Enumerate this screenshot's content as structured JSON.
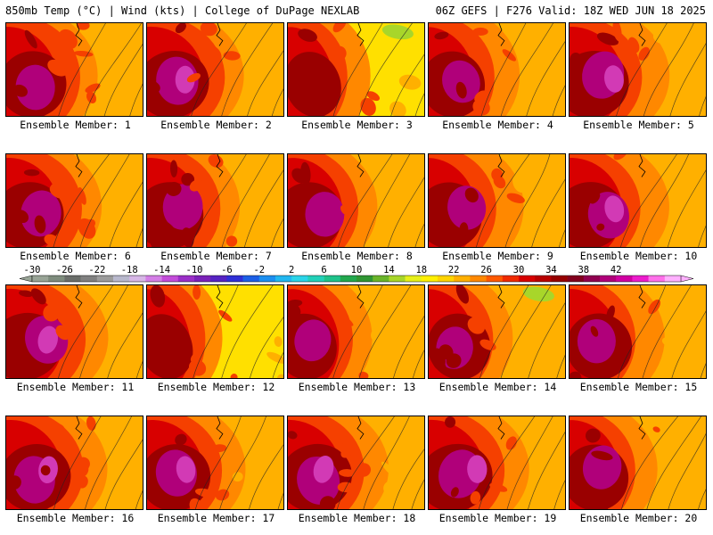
{
  "header": {
    "left_title": "850mb Temp (°C) | Wind (kts) | College of DuPage NEXLAB",
    "right_title": "06Z GEFS | F276 Valid: 18Z WED JUN 18 2025"
  },
  "members": [
    {
      "label": "Ensemble Member: 1",
      "heat": 0.74
    },
    {
      "label": "Ensemble Member: 2",
      "heat": 0.85
    },
    {
      "label": "Ensemble Member: 3",
      "heat": 0.5
    },
    {
      "label": "Ensemble Member: 4",
      "heat": 0.66
    },
    {
      "label": "Ensemble Member: 5",
      "heat": 0.83
    },
    {
      "label": "Ensemble Member: 6",
      "heat": 0.78
    },
    {
      "label": "Ensemble Member: 7",
      "heat": 0.76
    },
    {
      "label": "Ensemble Member: 8",
      "heat": 0.73
    },
    {
      "label": "Ensemble Member: 9",
      "heat": 0.7
    },
    {
      "label": "Ensemble Member: 10",
      "heat": 0.8
    },
    {
      "label": "Ensemble Member: 11",
      "heat": 0.86
    },
    {
      "label": "Ensemble Member: 12",
      "heat": 0.45
    },
    {
      "label": "Ensemble Member: 13",
      "heat": 0.62
    },
    {
      "label": "Ensemble Member: 14",
      "heat": 0.64
    },
    {
      "label": "Ensemble Member: 15",
      "heat": 0.7
    },
    {
      "label": "Ensemble Member: 16",
      "heat": 0.82
    },
    {
      "label": "Ensemble Member: 17",
      "heat": 0.8
    },
    {
      "label": "Ensemble Member: 18",
      "heat": 0.86
    },
    {
      "label": "Ensemble Member: 19",
      "heat": 0.88
    },
    {
      "label": "Ensemble Member: 20",
      "heat": 0.7
    }
  ],
  "legend": {
    "tick_labels": [
      "-30",
      "-26",
      "-22",
      "-18",
      "-14",
      "-10",
      "-6",
      "-2",
      "2",
      "6",
      "10",
      "14",
      "18",
      "22",
      "26",
      "30",
      "34",
      "38",
      "42"
    ],
    "colors": [
      "#98a496",
      "#7e8c7d",
      "#6a6e6a",
      "#808080",
      "#9c9c9c",
      "#b8b8cc",
      "#d6b6e6",
      "#d37ee6",
      "#c24cd9",
      "#9a2fc7",
      "#7a22b8",
      "#5623c2",
      "#2f2fd6",
      "#1c5fe6",
      "#1c8ff0",
      "#22b7f0",
      "#2ad4e8",
      "#22d0b8",
      "#1fc28a",
      "#22a84e",
      "#2f9633",
      "#6ab52a",
      "#a8d62a",
      "#e6f01a",
      "#fff000",
      "#ffd400",
      "#ffb000",
      "#ff8800",
      "#ff5a00",
      "#f02a00",
      "#d80000",
      "#b80000",
      "#960000",
      "#82001e",
      "#900050",
      "#b0007a",
      "#d000a2",
      "#ec1ccc",
      "#ff70ea",
      "#ffb0ff"
    ]
  },
  "map_colors": {
    "base_warm": "#ffb000",
    "orange": "#ff8800",
    "red_orange": "#f54000",
    "red": "#d80000",
    "dark_red": "#9a0000",
    "magenta": "#b0007a",
    "pink": "#d23ab5",
    "yellow": "#ffe000",
    "green": "#a8d62a",
    "contour": "#222222"
  }
}
